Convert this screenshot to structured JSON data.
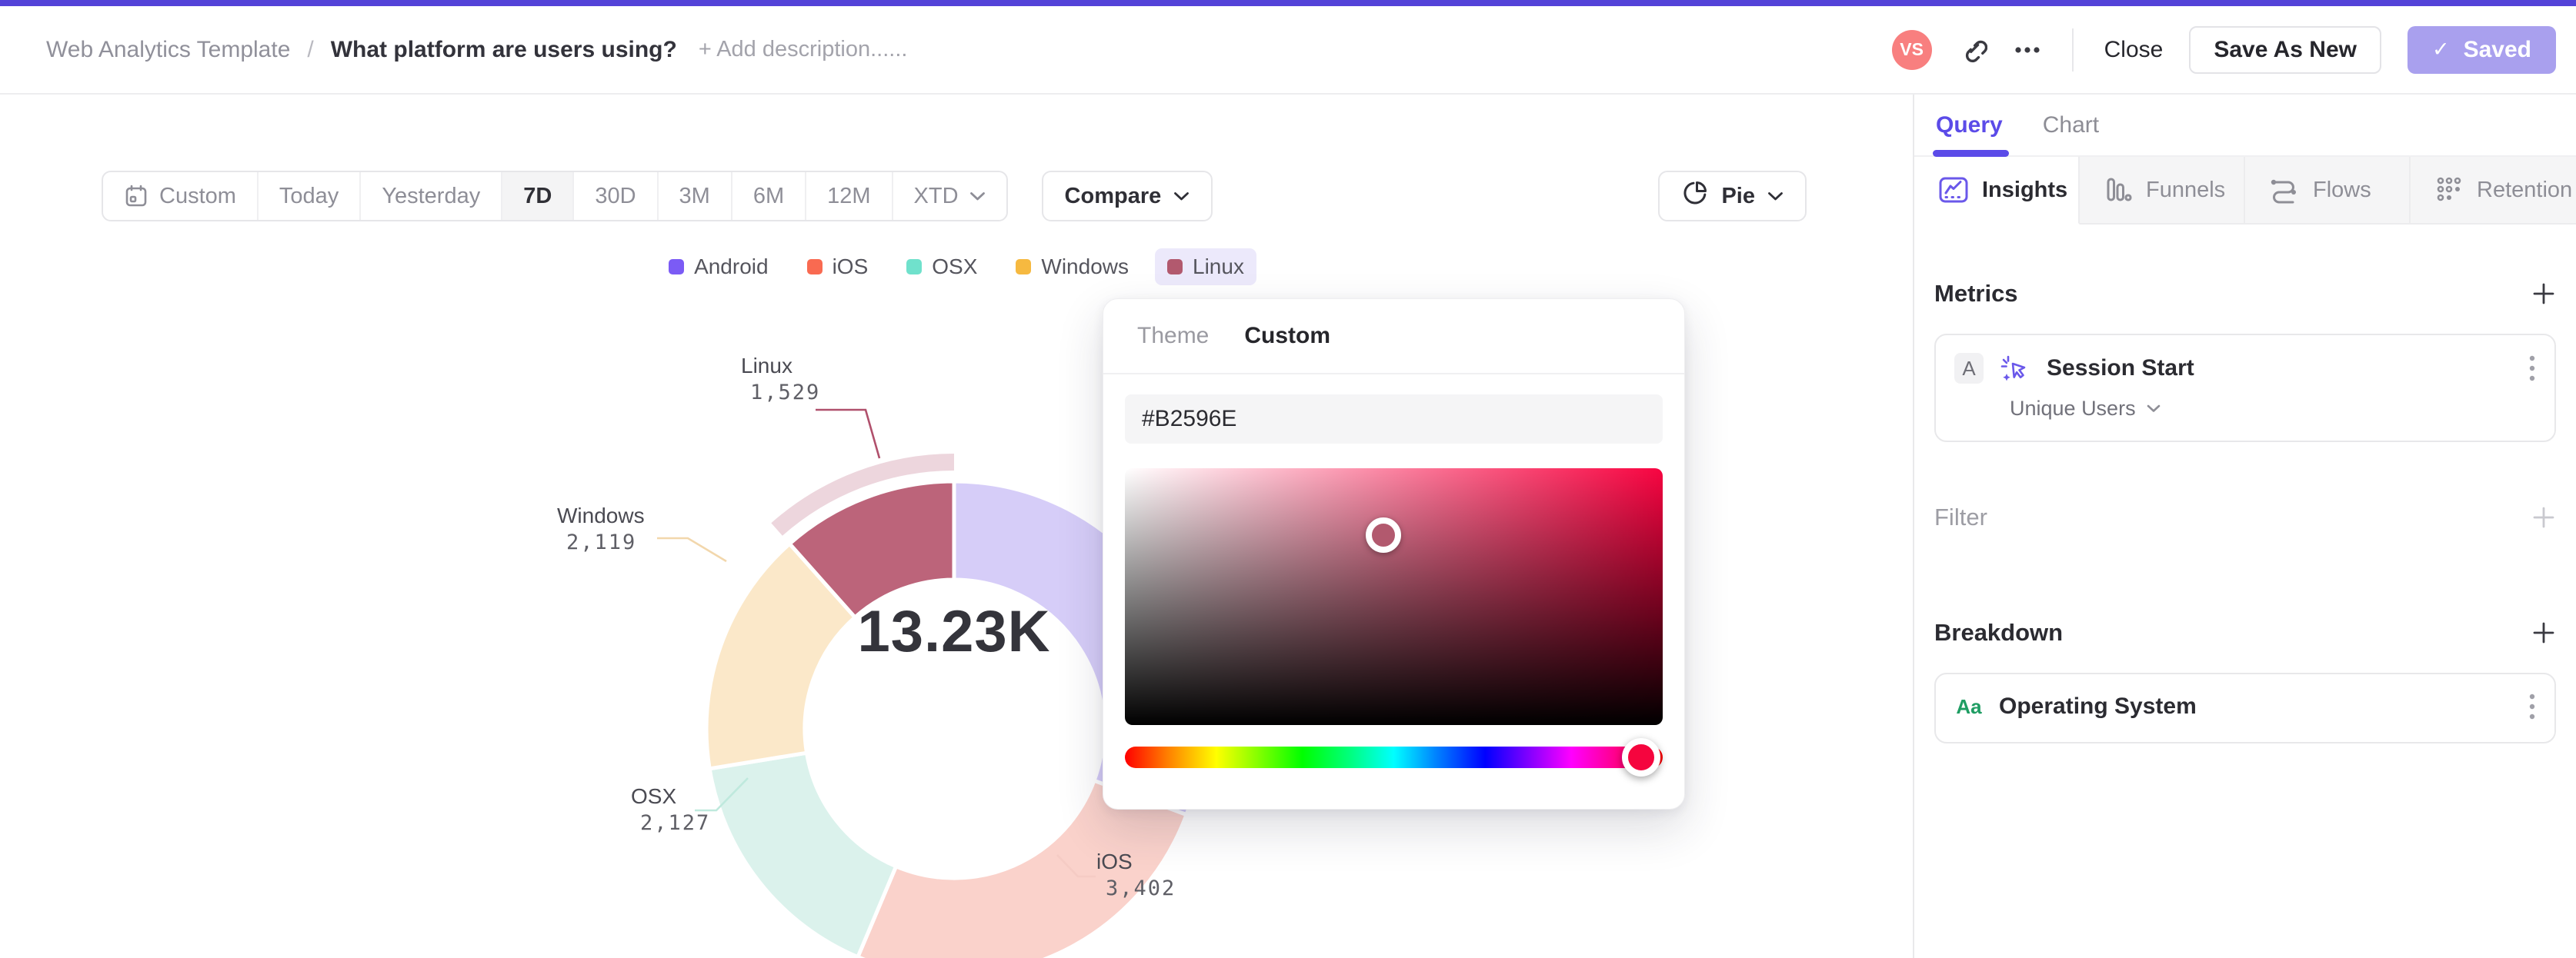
{
  "icons": {
    "check": "✓"
  },
  "topbar": {
    "breadcrumb_root": "Web Analytics Template",
    "breadcrumb_separator": "/",
    "title": "What platform are users using?",
    "add_description": "+ Add description......",
    "avatar_initials": "VS",
    "close_label": "Close",
    "save_as_new_label": "Save As New",
    "saved_label": "Saved",
    "accent_color": "#5443D8"
  },
  "toolbar": {
    "date_ranges": [
      {
        "label": "Custom",
        "icon": "calendar-icon"
      },
      {
        "label": "Today"
      },
      {
        "label": "Yesterday"
      },
      {
        "label": "7D",
        "active": true
      },
      {
        "label": "30D"
      },
      {
        "label": "3M"
      },
      {
        "label": "6M"
      },
      {
        "label": "12M"
      },
      {
        "label": "XTD",
        "dropdown": true
      }
    ],
    "compare_label": "Compare",
    "chart_type_label": "Pie"
  },
  "legend": {
    "highlighted": "Linux"
  },
  "chart_data": {
    "type": "pie",
    "subtype": "donut",
    "center_total": "13.23K",
    "legend_position": "top",
    "selected_slice": "Linux",
    "series": [
      {
        "name": "Android",
        "value": 4053,
        "display_value": "",
        "label_visible": false,
        "color": "#7B5BF5",
        "muted_color": "#D6CDF8"
      },
      {
        "name": "iOS",
        "value": 3402,
        "display_value": "3,402",
        "label_visible": true,
        "color": "#F96A51",
        "muted_color": "#FAD2CB"
      },
      {
        "name": "OSX",
        "value": 2127,
        "display_value": "2,127",
        "label_visible": true,
        "color": "#70E1CC",
        "muted_color": "#DBF2EC"
      },
      {
        "name": "Windows",
        "value": 2119,
        "display_value": "2,119",
        "label_visible": true,
        "color": "#F6B940",
        "muted_color": "#FBE8C9"
      },
      {
        "name": "Linux",
        "value": 1529,
        "display_value": "1,529",
        "label_visible": true,
        "color": "#B2596E",
        "muted_color": "#BC647A",
        "selected": true,
        "halo_color": "#EDD6DD"
      }
    ]
  },
  "color_picker": {
    "tabs": [
      {
        "label": "Theme"
      },
      {
        "label": "Custom",
        "active": true
      }
    ],
    "hex_value": "#B2596E",
    "hue_color": "#F80441",
    "thumb_color": "#F5053E"
  },
  "side_panel": {
    "tabs": [
      {
        "label": "Query",
        "active": true
      },
      {
        "label": "Chart"
      }
    ],
    "view_tabs": [
      {
        "label": "Insights",
        "icon": "insights-icon",
        "active": true
      },
      {
        "label": "Funnels",
        "icon": "funnels-icon"
      },
      {
        "label": "Flows",
        "icon": "flows-icon"
      },
      {
        "label": "Retention",
        "icon": "retention-icon"
      }
    ],
    "metrics": {
      "heading": "Metrics",
      "card": {
        "badge": "A",
        "icon": "click-event-icon",
        "label": "Session Start",
        "aggregation": "Unique Users"
      }
    },
    "filter": {
      "heading": "Filter"
    },
    "breakdown": {
      "heading": "Breakdown",
      "card": {
        "badge": "Aa",
        "label": "Operating System"
      }
    }
  }
}
